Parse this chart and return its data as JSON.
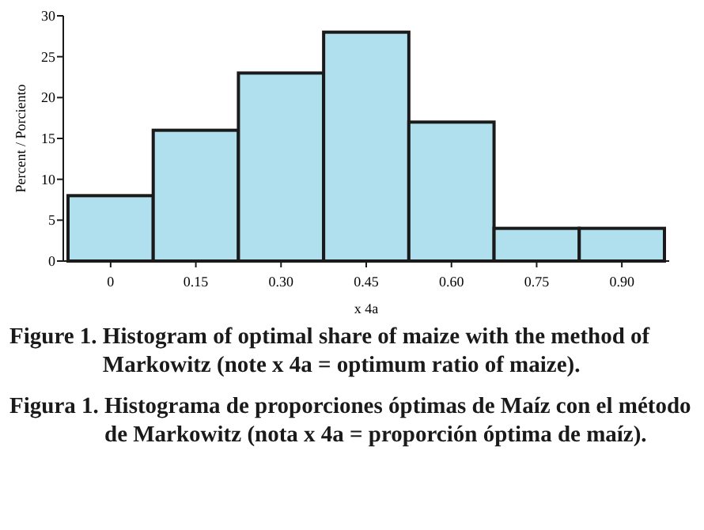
{
  "chart_data": {
    "type": "bar",
    "categories": [
      "0",
      "0.15",
      "0.30",
      "0.45",
      "0.60",
      "0.75",
      "0.90"
    ],
    "values": [
      8,
      16,
      23,
      28,
      17,
      4,
      4
    ],
    "color": "#b0e0ee",
    "ylim": [
      0,
      30
    ],
    "yticks": [
      0,
      5,
      10,
      15,
      20,
      25,
      30
    ],
    "xlabel": "x 4a",
    "ylabel": "Percent / Porciento",
    "grid": false,
    "annotations": [
      "Figure 1. Histogram of optimal share of maize with the method of Markowitz (note x 4a = optimum ratio of maize).",
      "Figura 1. Histograma de proporciones óptimas de Maíz con el método de Markowitz (nota x 4a = proporción óptima de maíz)."
    ]
  }
}
